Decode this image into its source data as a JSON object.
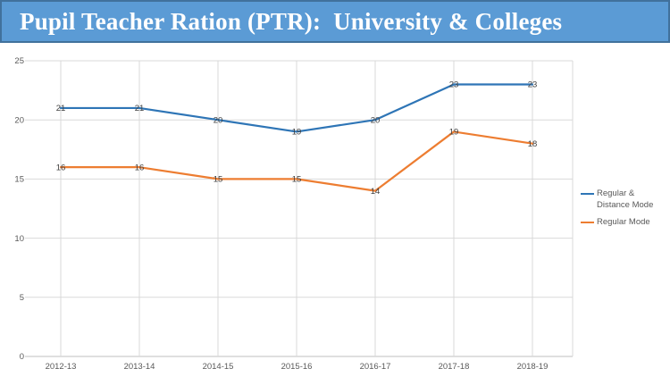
{
  "banner": {
    "title": "Pupil Teacher Ration (PTR):  University & Colleges",
    "bg_color": "#5B9BD5",
    "border_color": "#41719C",
    "text_color": "#FFFFFF"
  },
  "chart_data": {
    "type": "line",
    "title": "",
    "categories": [
      "2012-13",
      "2013-14",
      "2014-15",
      "2015-16",
      "2016-17",
      "2017-18",
      "2018-19"
    ],
    "series": [
      {
        "name": "Regular & Distance Mode",
        "color": "#2E75B6",
        "values": [
          21,
          21,
          20,
          19,
          20,
          23,
          23
        ]
      },
      {
        "name": "Regular Mode",
        "color": "#ED7D31",
        "values": [
          16,
          16,
          15,
          15,
          14,
          19,
          18
        ]
      }
    ],
    "ylim": [
      0,
      25
    ],
    "yticks": [
      0,
      5,
      10,
      15,
      20,
      25
    ],
    "grid": true,
    "legend_position": "right",
    "data_labels": true,
    "axis_text_color": "#595959",
    "gridline_color": "#D9D9D9",
    "axis_line_color": "#BFBFBF",
    "data_label_color": "#404040"
  }
}
